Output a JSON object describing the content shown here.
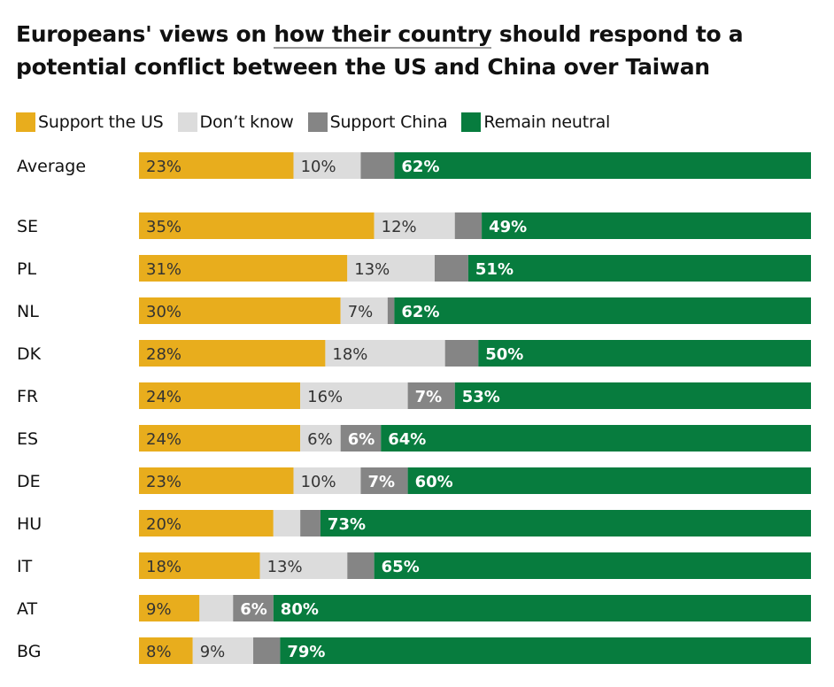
{
  "title": {
    "part1": "Europeans' views on ",
    "part2": "how their country",
    "part3": " should respond to a potential conflict between the US and China over Taiwan"
  },
  "legend": [
    {
      "label": "Support the US",
      "color": "#e8ad1d"
    },
    {
      "label": "Don’t know",
      "color": "#dcdcdc"
    },
    {
      "label": "Support China",
      "color": "#858585"
    },
    {
      "label": "Remain neutral",
      "color": "#077c3e"
    }
  ],
  "chart_data": {
    "type": "bar",
    "orientation": "horizontal",
    "stacked": true,
    "unit": "%",
    "categories": [
      "Average",
      "SE",
      "PL",
      "NL",
      "DK",
      "FR",
      "ES",
      "DE",
      "HU",
      "IT",
      "AT",
      "BG"
    ],
    "series": [
      {
        "name": "Support the US",
        "color": "#e8ad1d",
        "text_color": "#333333",
        "values": [
          23,
          35,
          31,
          30,
          28,
          24,
          24,
          23,
          20,
          18,
          9,
          8
        ],
        "labels": [
          "23%",
          "35%",
          "31%",
          "30%",
          "28%",
          "24%",
          "24%",
          "23%",
          "20%",
          "18%",
          "9%",
          "8%"
        ]
      },
      {
        "name": "Don’t know",
        "color": "#dcdcdc",
        "text_color": "#333333",
        "values": [
          10,
          12,
          13,
          7,
          18,
          16,
          6,
          10,
          4,
          13,
          5,
          9
        ],
        "labels": [
          "10%",
          "12%",
          "13%",
          "7%",
          "18%",
          "16%",
          "6%",
          "10%",
          "",
          "13%",
          "",
          "9%"
        ]
      },
      {
        "name": "Support China",
        "color": "#858585",
        "text_color": "#ffffff",
        "values": [
          5,
          4,
          5,
          1,
          5,
          7,
          6,
          7,
          3,
          4,
          6,
          4
        ],
        "labels": [
          "",
          "",
          "",
          "",
          "",
          "7%",
          "6%",
          "7%",
          "",
          "",
          "6%",
          ""
        ]
      },
      {
        "name": "Remain neutral",
        "color": "#077c3e",
        "text_color": "#ffffff",
        "values": [
          62,
          49,
          51,
          62,
          50,
          53,
          64,
          60,
          73,
          65,
          80,
          79
        ],
        "labels": [
          "62%",
          "49%",
          "51%",
          "62%",
          "50%",
          "53%",
          "64%",
          "60%",
          "73%",
          "65%",
          "80%",
          "79%"
        ]
      }
    ]
  }
}
